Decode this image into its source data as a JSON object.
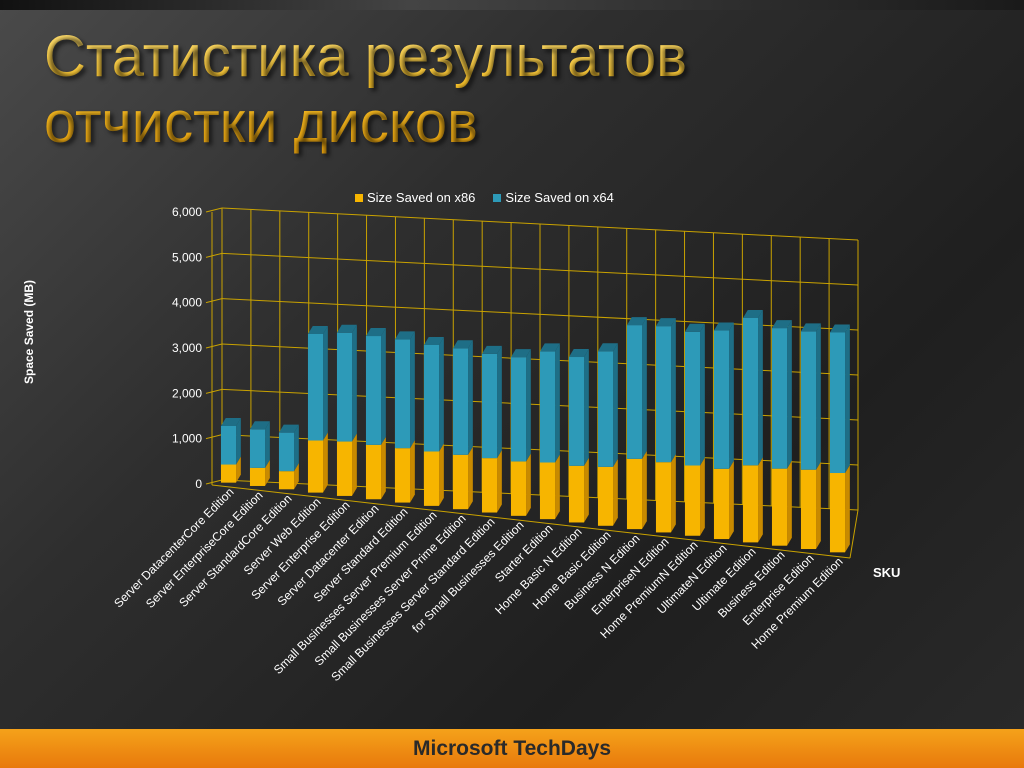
{
  "slide": {
    "title_line1": "Статистика результатов",
    "title_line2": "отчистки дисков",
    "footer": "Microsoft TechDays"
  },
  "colors": {
    "x86": "#f7b500",
    "x86_side": "#c88a00",
    "x64": "#2d9ab8",
    "x64_side": "#1e6e86",
    "grid": "#c9a200",
    "axis_text": "#ffffff"
  },
  "chart_data": {
    "type": "bar",
    "stacked": true,
    "3d": true,
    "title": "",
    "xlabel": "SKU",
    "ylabel": "Space Saved (MB)",
    "ylim": [
      0,
      6000
    ],
    "yticks": [
      "0",
      "1,000",
      "2,000",
      "3,000",
      "4,000",
      "5,000",
      "6,000"
    ],
    "legend_position": "top",
    "grid": true,
    "categories": [
      "Server DatacenterCore Edition",
      "Server EnterpriseCore Edition",
      "Server StandardCore Edition",
      "Server Web Edition",
      "Server Enterprise Edition",
      "Server Datacenter Edition",
      "Server Standard Edition",
      "Small Businesses Server Premium Edition",
      "Small Businesses Server Prime Edition",
      "Small Businesses Server Standard Edition",
      "for Small Businesses Edition",
      "Starter Edition",
      "Home Basic N Edition",
      "Home Basic Edition",
      "Business N Edition",
      "EnterpriseN Edition",
      "Home PremiumN Edition",
      "UltimateN Edition",
      "Ultimate Edition",
      "Business Edition",
      "Enterprise Edition",
      "Home Premium Edition"
    ],
    "series": [
      {
        "name": "Size Saved on x86",
        "values": [
          400,
          400,
          400,
          1150,
          1200,
          1200,
          1200,
          1200,
          1200,
          1200,
          1200,
          1250,
          1250,
          1300,
          1550,
          1550,
          1550,
          1550,
          1700,
          1700,
          1750,
          1750
        ]
      },
      {
        "name": "Size Saved on x64",
        "values": [
          850,
          850,
          850,
          2350,
          2400,
          2400,
          2400,
          2350,
          2350,
          2300,
          2300,
          2450,
          2400,
          2550,
          2950,
          3000,
          2950,
          3050,
          3250,
          3100,
          3050,
          3100
        ]
      }
    ]
  }
}
